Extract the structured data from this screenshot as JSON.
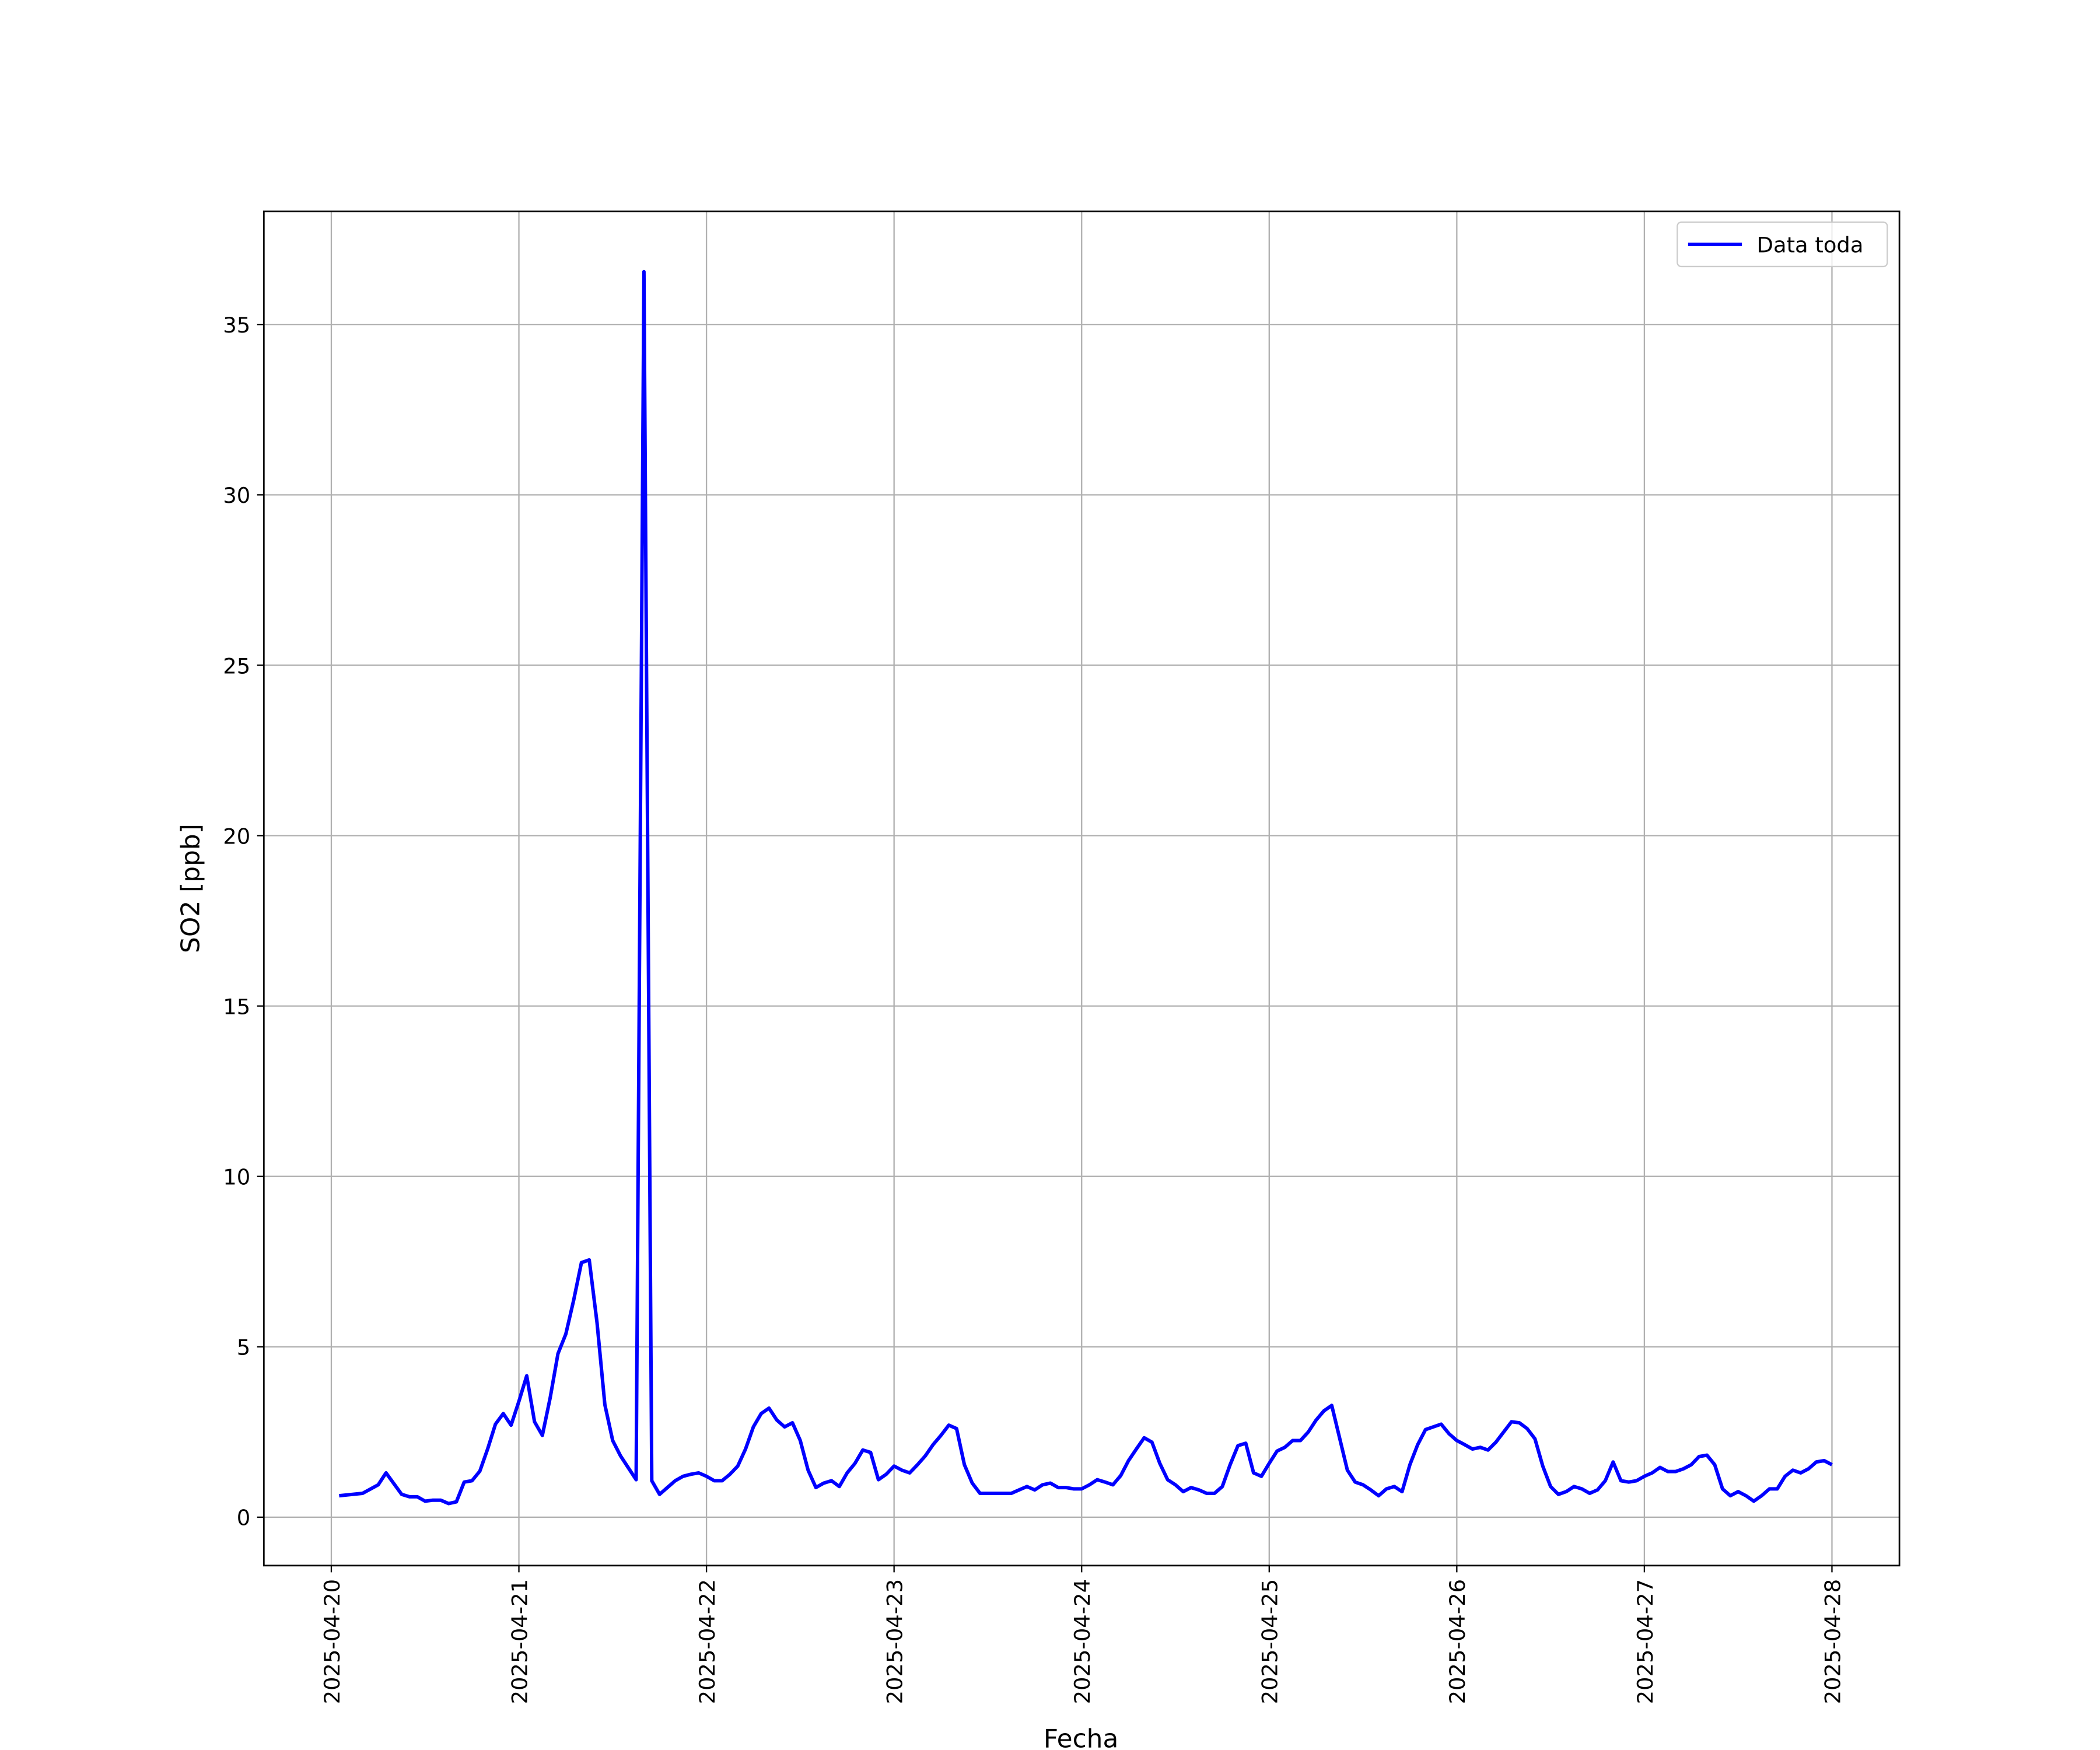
{
  "chart_data": {
    "type": "line",
    "xlabel": "Fecha",
    "ylabel": "SO2 [ppb]",
    "x": [
      "2025-04-20 01:00",
      "2025-04-20 04:00",
      "2025-04-20 06:00",
      "2025-04-20 07:00",
      "2025-04-20 09:00",
      "2025-04-20 10:00",
      "2025-04-20 11:00",
      "2025-04-20 12:00",
      "2025-04-20 13:00",
      "2025-04-20 14:00",
      "2025-04-20 15:00",
      "2025-04-20 16:00",
      "2025-04-20 17:00",
      "2025-04-20 18:00",
      "2025-04-20 19:00",
      "2025-04-20 20:00",
      "2025-04-20 21:00",
      "2025-04-20 22:00",
      "2025-04-20 23:00",
      "2025-04-21 00:00",
      "2025-04-21 01:00",
      "2025-04-21 02:00",
      "2025-04-21 03:00",
      "2025-04-21 04:00",
      "2025-04-21 05:00",
      "2025-04-21 06:00",
      "2025-04-21 07:00",
      "2025-04-21 08:00",
      "2025-04-21 09:00",
      "2025-04-21 10:00",
      "2025-04-21 11:00",
      "2025-04-21 12:00",
      "2025-04-21 13:00",
      "2025-04-21 14:00",
      "2025-04-21 15:00",
      "2025-04-21 16:00",
      "2025-04-21 17:00",
      "2025-04-21 18:00",
      "2025-04-21 19:00",
      "2025-04-21 20:00",
      "2025-04-21 21:00",
      "2025-04-21 22:00",
      "2025-04-21 23:00",
      "2025-04-22 00:00",
      "2025-04-22 01:00",
      "2025-04-22 02:00",
      "2025-04-22 03:00",
      "2025-04-22 04:00",
      "2025-04-22 05:00",
      "2025-04-22 06:00",
      "2025-04-22 07:00",
      "2025-04-22 08:00",
      "2025-04-22 09:00",
      "2025-04-22 10:00",
      "2025-04-22 11:00",
      "2025-04-22 12:00",
      "2025-04-22 13:00",
      "2025-04-22 14:00",
      "2025-04-22 15:00",
      "2025-04-22 16:00",
      "2025-04-22 17:00",
      "2025-04-22 18:00",
      "2025-04-22 19:00",
      "2025-04-22 20:00",
      "2025-04-22 21:00",
      "2025-04-22 22:00",
      "2025-04-22 23:00",
      "2025-04-23 00:00",
      "2025-04-23 01:00",
      "2025-04-23 02:00",
      "2025-04-23 03:00",
      "2025-04-23 04:00",
      "2025-04-23 05:00",
      "2025-04-23 06:00",
      "2025-04-23 07:00",
      "2025-04-23 08:00",
      "2025-04-23 09:00",
      "2025-04-23 10:00",
      "2025-04-23 11:00",
      "2025-04-23 12:00",
      "2025-04-23 13:00",
      "2025-04-23 14:00",
      "2025-04-23 15:00",
      "2025-04-23 16:00",
      "2025-04-23 17:00",
      "2025-04-23 18:00",
      "2025-04-23 19:00",
      "2025-04-23 20:00",
      "2025-04-23 21:00",
      "2025-04-23 22:00",
      "2025-04-23 23:00",
      "2025-04-24 00:00",
      "2025-04-24 01:00",
      "2025-04-24 02:00",
      "2025-04-24 03:00",
      "2025-04-24 04:00",
      "2025-04-24 05:00",
      "2025-04-24 06:00",
      "2025-04-24 07:00",
      "2025-04-24 08:00",
      "2025-04-24 09:00",
      "2025-04-24 10:00",
      "2025-04-24 11:00",
      "2025-04-24 12:00",
      "2025-04-24 13:00",
      "2025-04-24 14:00",
      "2025-04-24 15:00",
      "2025-04-24 16:00",
      "2025-04-24 17:00",
      "2025-04-24 18:00",
      "2025-04-24 19:00",
      "2025-04-24 20:00",
      "2025-04-24 21:00",
      "2025-04-24 22:00",
      "2025-04-24 23:00",
      "2025-04-25 00:00",
      "2025-04-25 01:00",
      "2025-04-25 02:00",
      "2025-04-25 03:00",
      "2025-04-25 04:00",
      "2025-04-25 05:00",
      "2025-04-25 06:00",
      "2025-04-25 07:00",
      "2025-04-25 08:00",
      "2025-04-25 09:00",
      "2025-04-25 10:00",
      "2025-04-25 11:00",
      "2025-04-25 12:00",
      "2025-04-25 13:00",
      "2025-04-25 14:00",
      "2025-04-25 15:00",
      "2025-04-25 16:00",
      "2025-04-25 17:00",
      "2025-04-25 18:00",
      "2025-04-25 19:00",
      "2025-04-25 20:00",
      "2025-04-25 21:00",
      "2025-04-25 22:00",
      "2025-04-25 23:00",
      "2025-04-26 00:00",
      "2025-04-26 01:00",
      "2025-04-26 02:00",
      "2025-04-26 03:00",
      "2025-04-26 04:00",
      "2025-04-26 05:00",
      "2025-04-26 06:00",
      "2025-04-26 07:00",
      "2025-04-26 08:00",
      "2025-04-26 09:00",
      "2025-04-26 10:00",
      "2025-04-26 11:00",
      "2025-04-26 12:00",
      "2025-04-26 13:00",
      "2025-04-26 14:00",
      "2025-04-26 15:00",
      "2025-04-26 16:00",
      "2025-04-26 17:00",
      "2025-04-26 18:00",
      "2025-04-26 19:00",
      "2025-04-26 20:00",
      "2025-04-26 21:00",
      "2025-04-26 22:00",
      "2025-04-26 23:00",
      "2025-04-27 00:00",
      "2025-04-27 01:00",
      "2025-04-27 02:00",
      "2025-04-27 03:00",
      "2025-04-27 04:00",
      "2025-04-27 05:00",
      "2025-04-27 06:00",
      "2025-04-27 07:00",
      "2025-04-27 08:00",
      "2025-04-27 09:00",
      "2025-04-27 10:00",
      "2025-04-27 11:00",
      "2025-04-27 12:00",
      "2025-04-27 13:00",
      "2025-04-27 14:00",
      "2025-04-27 15:00",
      "2025-04-27 16:00",
      "2025-04-27 17:00",
      "2025-04-27 18:00",
      "2025-04-27 19:00",
      "2025-04-27 20:00",
      "2025-04-27 21:00",
      "2025-04-27 22:00",
      "2025-04-27 23:00",
      "2025-04-28 00:00"
    ],
    "series": [
      {
        "name": "Data toda",
        "color": "#0000ff",
        "values": [
          0.63,
          0.7,
          0.95,
          1.3,
          0.67,
          0.6,
          0.6,
          0.47,
          0.5,
          0.5,
          0.4,
          0.45,
          1.03,
          1.07,
          1.35,
          2.0,
          2.73,
          3.04,
          2.7,
          3.4,
          4.15,
          2.8,
          2.4,
          3.5,
          4.8,
          5.37,
          6.36,
          7.47,
          7.55,
          5.7,
          3.3,
          2.25,
          1.8,
          1.45,
          1.1,
          36.55,
          1.07,
          0.67,
          0.87,
          1.07,
          1.2,
          1.26,
          1.3,
          1.2,
          1.07,
          1.07,
          1.26,
          1.5,
          2.0,
          2.65,
          3.04,
          3.2,
          2.85,
          2.65,
          2.77,
          2.25,
          1.38,
          0.87,
          1.0,
          1.07,
          0.9,
          1.3,
          1.58,
          1.97,
          1.9,
          1.1,
          1.26,
          1.5,
          1.38,
          1.3,
          1.54,
          1.8,
          2.13,
          2.4,
          2.7,
          2.6,
          1.54,
          1.0,
          0.7,
          0.7,
          0.7,
          0.7,
          0.7,
          0.8,
          0.9,
          0.8,
          0.95,
          1.0,
          0.87,
          0.87,
          0.83,
          0.83,
          0.95,
          1.1,
          1.03,
          0.95,
          1.22,
          1.66,
          2.0,
          2.33,
          2.2,
          1.58,
          1.1,
          0.95,
          0.75,
          0.87,
          0.8,
          0.7,
          0.7,
          0.9,
          1.54,
          2.1,
          2.17,
          1.3,
          1.2,
          1.58,
          1.94,
          2.05,
          2.25,
          2.25,
          2.5,
          2.85,
          3.12,
          3.28,
          2.33,
          1.38,
          1.03,
          0.95,
          0.8,
          0.63,
          0.83,
          0.9,
          0.75,
          1.54,
          2.13,
          2.57,
          2.65,
          2.73,
          2.45,
          2.25,
          2.13,
          2.0,
          2.05,
          1.97,
          2.2,
          2.5,
          2.8,
          2.77,
          2.6,
          2.3,
          1.5,
          0.9,
          0.67,
          0.75,
          0.9,
          0.83,
          0.7,
          0.8,
          1.07,
          1.62,
          1.07,
          1.03,
          1.07,
          1.2,
          1.3,
          1.46,
          1.34,
          1.34,
          1.42,
          1.54,
          1.78,
          1.82,
          1.54,
          0.83,
          0.63,
          0.75,
          0.63,
          0.47,
          0.63,
          0.83,
          0.83,
          1.2,
          1.38,
          1.3,
          1.42,
          1.62,
          1.66,
          1.54
        ]
      }
    ],
    "xlim": [
      "2025-04-19 15:22",
      "2025-04-28 08:38"
    ],
    "xticks": [
      "2025-04-20",
      "2025-04-21",
      "2025-04-22",
      "2025-04-23",
      "2025-04-24",
      "2025-04-25",
      "2025-04-26",
      "2025-04-27",
      "2025-04-28"
    ],
    "ylim": [
      -1.42,
      38.32
    ],
    "yticks": [
      0,
      5,
      10,
      15,
      20,
      25,
      30,
      35
    ],
    "grid": true,
    "legend": "upper right"
  }
}
